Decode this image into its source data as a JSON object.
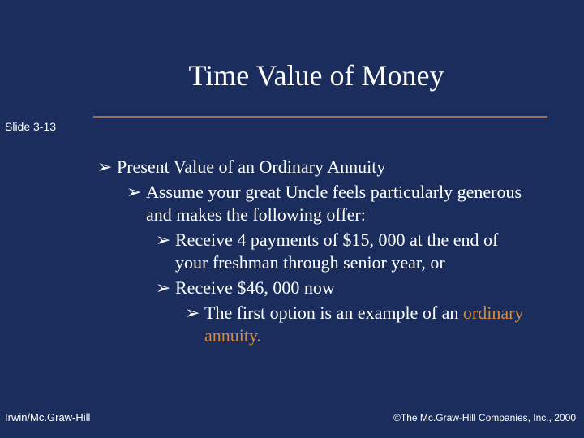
{
  "colors": {
    "background": "#1a2d5c",
    "text": "#ffffff",
    "divider": "#a07050",
    "highlight": "#d98a3a"
  },
  "typography": {
    "title_font": "Book Antiqua",
    "title_size_pt": 28,
    "body_font": "Book Antiqua",
    "body_size_pt": 18,
    "footer_font": "Arial",
    "footer_size_pt": 10
  },
  "title": "Time Value of Money",
  "slide_number": "Slide 3-13",
  "bullet_glyph": "➢",
  "bullets": {
    "b1": "Present Value of an Ordinary Annuity",
    "b2": "Assume your great Uncle feels particularly generous and makes the following offer:",
    "b3": "Receive 4 payments of $15, 000 at the end of your freshman through senior year, or",
    "b4": "Receive $46, 000 now",
    "b5_pre": "The first option is an example of an ",
    "b5_highlight": "ordinary annuity."
  },
  "footer": {
    "left": "Irwin/Mc.Graw-Hill",
    "right": "©The Mc.Graw-Hill Companies, Inc., 2000"
  }
}
